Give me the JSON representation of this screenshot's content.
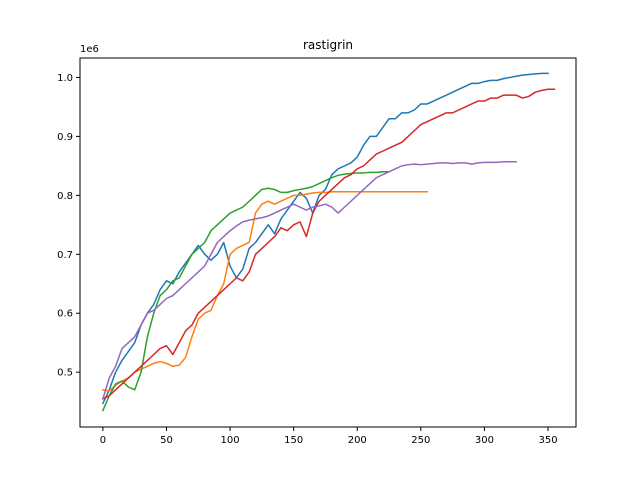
{
  "chart_data": {
    "type": "line",
    "title": "rastigrin",
    "xlabel": "",
    "ylabel": "",
    "y_offset_label": "1e6",
    "xlim": [
      -18,
      372
    ],
    "ylim": [
      0.407,
      1.033
    ],
    "x_ticks": [
      0,
      50,
      100,
      150,
      200,
      250,
      300,
      350
    ],
    "x_tick_labels": [
      "0",
      "50",
      "100",
      "150",
      "200",
      "250",
      "300",
      "350"
    ],
    "y_ticks": [
      0.5,
      0.6,
      0.7,
      0.8,
      0.9,
      1.0
    ],
    "y_tick_labels": [
      "0.5",
      "0.6",
      "0.7",
      "0.8",
      "0.9",
      "1.0"
    ],
    "grid": false,
    "legend": "none",
    "series": [
      {
        "color": "#1f77b4",
        "x": [
          0,
          5,
          10,
          15,
          20,
          25,
          30,
          35,
          40,
          45,
          50,
          55,
          60,
          65,
          70,
          75,
          80,
          85,
          90,
          95,
          100,
          105,
          110,
          115,
          120,
          125,
          130,
          135,
          140,
          145,
          150,
          155,
          160,
          165,
          170,
          175,
          180,
          185,
          190,
          195,
          200,
          205,
          210,
          215,
          220,
          225,
          230,
          235,
          240,
          245,
          250,
          255,
          260,
          265,
          270,
          275,
          280,
          285,
          290,
          295,
          300,
          305,
          310,
          315,
          320,
          325,
          330,
          335,
          340,
          345,
          350
        ],
        "y": [
          0.447,
          0.47,
          0.5,
          0.52,
          0.535,
          0.55,
          0.58,
          0.6,
          0.615,
          0.64,
          0.655,
          0.65,
          0.67,
          0.685,
          0.7,
          0.715,
          0.7,
          0.69,
          0.7,
          0.72,
          0.68,
          0.66,
          0.675,
          0.71,
          0.72,
          0.735,
          0.75,
          0.735,
          0.76,
          0.775,
          0.79,
          0.805,
          0.795,
          0.77,
          0.8,
          0.81,
          0.835,
          0.845,
          0.85,
          0.855,
          0.865,
          0.885,
          0.9,
          0.9,
          0.915,
          0.93,
          0.93,
          0.94,
          0.94,
          0.945,
          0.955,
          0.955,
          0.96,
          0.965,
          0.97,
          0.975,
          0.98,
          0.985,
          0.99,
          0.99,
          0.993,
          0.995,
          0.995,
          0.998,
          1.0,
          1.002,
          1.004,
          1.005,
          1.006,
          1.007,
          1.007
        ]
      },
      {
        "color": "#ff7f0e",
        "x": [
          0,
          5,
          10,
          15,
          20,
          25,
          30,
          35,
          40,
          45,
          50,
          55,
          60,
          65,
          70,
          75,
          80,
          85,
          90,
          95,
          100,
          105,
          110,
          115,
          120,
          125,
          130,
          135,
          140,
          145,
          150,
          155,
          160,
          165,
          170,
          175,
          180,
          185,
          190,
          195,
          200,
          205,
          210,
          215,
          220,
          225,
          230,
          235,
          240,
          245,
          250,
          255
        ],
        "y": [
          0.47,
          0.468,
          0.478,
          0.485,
          0.49,
          0.5,
          0.505,
          0.51,
          0.515,
          0.518,
          0.515,
          0.51,
          0.512,
          0.525,
          0.56,
          0.59,
          0.6,
          0.605,
          0.63,
          0.65,
          0.7,
          0.71,
          0.715,
          0.72,
          0.77,
          0.785,
          0.79,
          0.785,
          0.79,
          0.795,
          0.8,
          0.8,
          0.802,
          0.804,
          0.805,
          0.805,
          0.806,
          0.806,
          0.806,
          0.806,
          0.806,
          0.806,
          0.806,
          0.806,
          0.806,
          0.806,
          0.806,
          0.806,
          0.806,
          0.806,
          0.806,
          0.806
        ]
      },
      {
        "color": "#2ca02c",
        "x": [
          0,
          5,
          10,
          15,
          20,
          25,
          30,
          35,
          40,
          45,
          50,
          55,
          60,
          65,
          70,
          75,
          80,
          85,
          90,
          95,
          100,
          105,
          110,
          115,
          120,
          125,
          130,
          135,
          140,
          145,
          150,
          155,
          160,
          165,
          170,
          175,
          180,
          185,
          190,
          195,
          200,
          205,
          210,
          215,
          220,
          225
        ],
        "y": [
          0.435,
          0.46,
          0.48,
          0.485,
          0.475,
          0.47,
          0.5,
          0.56,
          0.6,
          0.63,
          0.64,
          0.655,
          0.66,
          0.68,
          0.7,
          0.71,
          0.72,
          0.74,
          0.75,
          0.76,
          0.77,
          0.775,
          0.78,
          0.79,
          0.8,
          0.81,
          0.812,
          0.81,
          0.805,
          0.805,
          0.808,
          0.81,
          0.812,
          0.815,
          0.82,
          0.825,
          0.83,
          0.834,
          0.836,
          0.837,
          0.838,
          0.838,
          0.839,
          0.839,
          0.84,
          0.84
        ]
      },
      {
        "color": "#d62728",
        "x": [
          0,
          5,
          10,
          15,
          20,
          25,
          30,
          35,
          40,
          45,
          50,
          55,
          60,
          65,
          70,
          75,
          80,
          85,
          90,
          95,
          100,
          105,
          110,
          115,
          120,
          125,
          130,
          135,
          140,
          145,
          150,
          155,
          160,
          165,
          170,
          175,
          180,
          185,
          190,
          195,
          200,
          205,
          210,
          215,
          220,
          225,
          230,
          235,
          240,
          245,
          250,
          255,
          260,
          265,
          270,
          275,
          280,
          285,
          290,
          295,
          300,
          305,
          310,
          315,
          320,
          325,
          330,
          335,
          340,
          345,
          350,
          355
        ],
        "y": [
          0.455,
          0.46,
          0.47,
          0.48,
          0.49,
          0.5,
          0.51,
          0.52,
          0.53,
          0.54,
          0.545,
          0.53,
          0.55,
          0.57,
          0.58,
          0.6,
          0.61,
          0.62,
          0.63,
          0.64,
          0.65,
          0.66,
          0.655,
          0.67,
          0.7,
          0.71,
          0.72,
          0.73,
          0.745,
          0.74,
          0.75,
          0.755,
          0.73,
          0.77,
          0.79,
          0.8,
          0.81,
          0.82,
          0.83,
          0.835,
          0.845,
          0.85,
          0.86,
          0.87,
          0.875,
          0.88,
          0.885,
          0.89,
          0.9,
          0.91,
          0.92,
          0.925,
          0.93,
          0.935,
          0.94,
          0.94,
          0.945,
          0.95,
          0.955,
          0.96,
          0.96,
          0.965,
          0.965,
          0.97,
          0.97,
          0.97,
          0.965,
          0.968,
          0.975,
          0.978,
          0.98,
          0.98
        ]
      },
      {
        "color": "#9467bd",
        "x": [
          0,
          5,
          10,
          15,
          20,
          25,
          30,
          35,
          40,
          45,
          50,
          55,
          60,
          65,
          70,
          75,
          80,
          85,
          90,
          95,
          100,
          105,
          110,
          115,
          120,
          125,
          130,
          135,
          140,
          145,
          150,
          155,
          160,
          165,
          170,
          175,
          180,
          185,
          190,
          195,
          200,
          205,
          210,
          215,
          220,
          225,
          230,
          235,
          240,
          245,
          250,
          255,
          260,
          265,
          270,
          275,
          280,
          285,
          290,
          295,
          300,
          305,
          310,
          315,
          320,
          325
        ],
        "y": [
          0.455,
          0.49,
          0.51,
          0.54,
          0.55,
          0.56,
          0.58,
          0.6,
          0.605,
          0.615,
          0.625,
          0.63,
          0.64,
          0.65,
          0.66,
          0.67,
          0.68,
          0.7,
          0.72,
          0.73,
          0.74,
          0.748,
          0.755,
          0.758,
          0.76,
          0.762,
          0.765,
          0.77,
          0.775,
          0.78,
          0.785,
          0.78,
          0.775,
          0.78,
          0.782,
          0.785,
          0.78,
          0.77,
          0.78,
          0.79,
          0.8,
          0.81,
          0.82,
          0.83,
          0.835,
          0.84,
          0.845,
          0.85,
          0.852,
          0.853,
          0.852,
          0.853,
          0.854,
          0.855,
          0.855,
          0.854,
          0.855,
          0.855,
          0.853,
          0.855,
          0.856,
          0.856,
          0.856,
          0.857,
          0.857,
          0.857
        ]
      }
    ]
  }
}
